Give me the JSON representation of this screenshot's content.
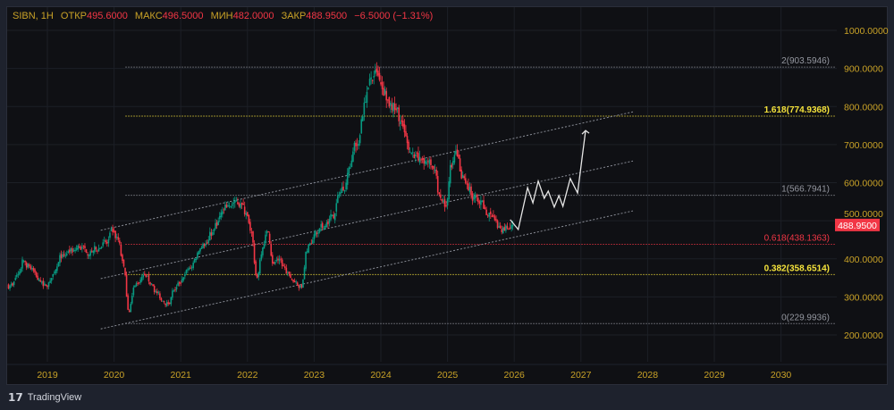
{
  "header": {
    "symbol": "SIBN, 1H",
    "open_label": "ОТКР",
    "open": "495.6000",
    "high_label": "МАКС",
    "high": "496.5000",
    "low_label": "МИН",
    "low": "482.0000",
    "close_label": "ЗАКР",
    "close": "488.9500",
    "change": "−6.5000 (−1.31%)"
  },
  "branding": {
    "logo_text": "TradingView"
  },
  "colors": {
    "up": "#089981",
    "down": "#f23645",
    "axis_text": "#c9a227",
    "fib_yellow": "#f5e33b",
    "fib_red": "#f23645",
    "fib_gray": "#9598a1",
    "projection": "#e6e6e6"
  },
  "chart_data": {
    "type": "candlestick",
    "title": "",
    "y_range": [
      200,
      1000
    ],
    "y_ticks": [
      "1000.0000",
      "900.0000",
      "800.0000",
      "700.0000",
      "600.0000",
      "500.0000",
      "400.0000",
      "300.0000",
      "200.0000"
    ],
    "x_ticks": [
      "2019",
      "2020",
      "2021",
      "2022",
      "2023",
      "2024",
      "2025",
      "2026",
      "2027",
      "2028",
      "2029",
      "2030"
    ],
    "grid": true,
    "last_price": "488.9500",
    "monthly_closes": [
      [
        "2018-06",
        330
      ],
      [
        "2018-07",
        360
      ],
      [
        "2018-08",
        395
      ],
      [
        "2018-09",
        380
      ],
      [
        "2018-10",
        364
      ],
      [
        "2018-11",
        340
      ],
      [
        "2018-12",
        329
      ],
      [
        "2019-01",
        350
      ],
      [
        "2019-02",
        380
      ],
      [
        "2019-03",
        411
      ],
      [
        "2019-04",
        420
      ],
      [
        "2019-05",
        423
      ],
      [
        "2019-06",
        430
      ],
      [
        "2019-07",
        428
      ],
      [
        "2019-08",
        420
      ],
      [
        "2019-09",
        425
      ],
      [
        "2019-10",
        432
      ],
      [
        "2019-11",
        440
      ],
      [
        "2019-12",
        470
      ],
      [
        "2020-01",
        450
      ],
      [
        "2020-02",
        380
      ],
      [
        "2020-03",
        260
      ],
      [
        "2020-04",
        330
      ],
      [
        "2020-05",
        345
      ],
      [
        "2020-06",
        352
      ],
      [
        "2020-07",
        335
      ],
      [
        "2020-08",
        310
      ],
      [
        "2020-09",
        290
      ],
      [
        "2020-10",
        282
      ],
      [
        "2020-11",
        317
      ],
      [
        "2020-12",
        335
      ],
      [
        "2021-01",
        360
      ],
      [
        "2021-02",
        376
      ],
      [
        "2021-03",
        400
      ],
      [
        "2021-04",
        430
      ],
      [
        "2021-05",
        440
      ],
      [
        "2021-06",
        470
      ],
      [
        "2021-07",
        500
      ],
      [
        "2021-08",
        528
      ],
      [
        "2021-09",
        540
      ],
      [
        "2021-10",
        552
      ],
      [
        "2021-11",
        545
      ],
      [
        "2021-12",
        520
      ],
      [
        "2022-01",
        470
      ],
      [
        "2022-02",
        350
      ],
      [
        "2022-03",
        430
      ],
      [
        "2022-04",
        470
      ],
      [
        "2022-05",
        388
      ],
      [
        "2022-06",
        400
      ],
      [
        "2022-07",
        376
      ],
      [
        "2022-08",
        350
      ],
      [
        "2022-09",
        340
      ],
      [
        "2022-10",
        325
      ],
      [
        "2022-11",
        420
      ],
      [
        "2022-12",
        450
      ],
      [
        "2023-01",
        470
      ],
      [
        "2023-02",
        480
      ],
      [
        "2023-03",
        505
      ],
      [
        "2023-04",
        520
      ],
      [
        "2023-05",
        575
      ],
      [
        "2023-06",
        600
      ],
      [
        "2023-07",
        658
      ],
      [
        "2023-08",
        700
      ],
      [
        "2023-09",
        775
      ],
      [
        "2023-10",
        850
      ],
      [
        "2023-11",
        880
      ],
      [
        "2023-12",
        870
      ],
      [
        "2024-01",
        845
      ],
      [
        "2024-02",
        810
      ],
      [
        "2024-03",
        790
      ],
      [
        "2024-04",
        760
      ],
      [
        "2024-05",
        704
      ],
      [
        "2024-06",
        680
      ],
      [
        "2024-07",
        658
      ],
      [
        "2024-08",
        650
      ],
      [
        "2024-09",
        660
      ],
      [
        "2024-10",
        634
      ],
      [
        "2024-11",
        560
      ],
      [
        "2024-12",
        540
      ],
      [
        "2025-01",
        640
      ],
      [
        "2025-02",
        669
      ],
      [
        "2025-03",
        620
      ],
      [
        "2025-04",
        580
      ],
      [
        "2025-05",
        563
      ],
      [
        "2025-06",
        545
      ],
      [
        "2025-07",
        530
      ],
      [
        "2025-08",
        517
      ],
      [
        "2025-09",
        500
      ],
      [
        "2025-10",
        470
      ],
      [
        "2025-11",
        480
      ],
      [
        "2025-12",
        489
      ]
    ],
    "fib_levels": [
      {
        "label": "2(903.5946)",
        "price": 903.5946,
        "color": "#9598a1"
      },
      {
        "label": "1.618(774.9368)",
        "price": 774.9368,
        "color": "#f5e33b"
      },
      {
        "label": "1(566.7941)",
        "price": 566.7941,
        "color": "#9598a1"
      },
      {
        "label": "0.618(438.1363)",
        "price": 438.1363,
        "color": "#f23645"
      },
      {
        "label": "0.382(358.6514)",
        "price": 358.6514,
        "color": "#f5e33b"
      },
      {
        "label": "0(229.9936)",
        "price": 229.9936,
        "color": "#9598a1"
      }
    ],
    "channel_lines": [
      {
        "from": [
          2019.8,
          475
        ],
        "to": [
          2027.78,
          786
        ]
      },
      {
        "from": [
          2019.8,
          348
        ],
        "to": [
          2027.78,
          657
        ]
      },
      {
        "from": [
          2019.8,
          216
        ],
        "to": [
          2027.78,
          526
        ]
      }
    ],
    "projection_path": [
      [
        2025.94,
        503
      ],
      [
        2026.06,
        477
      ],
      [
        2026.2,
        587
      ],
      [
        2026.28,
        547
      ],
      [
        2026.36,
        604
      ],
      [
        2026.45,
        559
      ],
      [
        2026.51,
        578
      ],
      [
        2026.6,
        536
      ],
      [
        2026.67,
        566
      ],
      [
        2026.73,
        538
      ],
      [
        2026.84,
        611
      ],
      [
        2026.95,
        573
      ],
      [
        2027.07,
        737
      ]
    ]
  }
}
